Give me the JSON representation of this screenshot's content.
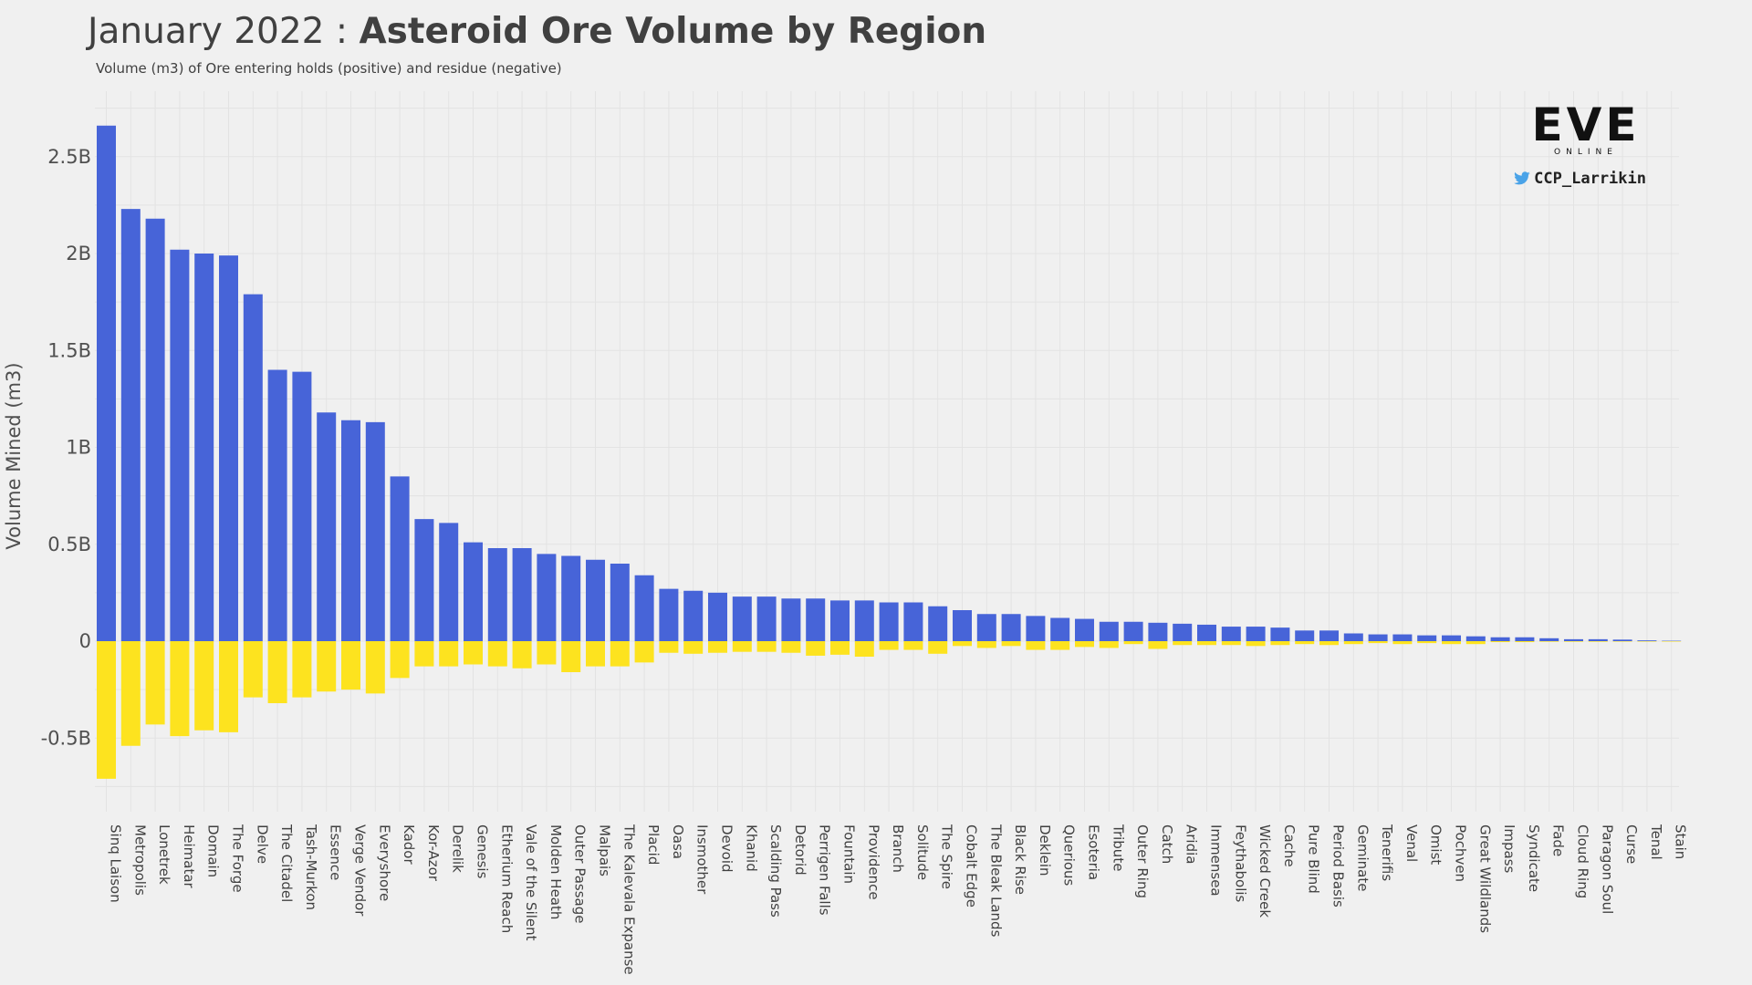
{
  "header": {
    "title_prefix": "January 2022 : ",
    "title_bold": "Asteroid Ore Volume by Region",
    "subtitle": "Volume (m3) of Ore entering holds (positive) and residue (negative)"
  },
  "branding": {
    "logo_text": "EVE",
    "logo_subtext": "ONLINE",
    "handle": "CCP_Larrikin",
    "handle_icon": "twitter-bird-icon"
  },
  "colors": {
    "background": "#f0f0f0",
    "positive": "#4764d8",
    "negative": "#fde31f",
    "grid": "#e3e3e3"
  },
  "chart_data": {
    "type": "bar",
    "title": "January 2022 : Asteroid Ore Volume by Region",
    "subtitle": "Volume (m3) of Ore entering holds (positive) and residue (negative)",
    "ylabel": "Volume Mined (m3)",
    "xlabel": "",
    "ylim": [
      -0.8,
      2.8
    ],
    "y_ticks": [
      -0.5,
      0,
      0.5,
      1,
      1.5,
      2,
      2.5
    ],
    "y_tick_labels": [
      "-0.5B",
      "0",
      "0.5B",
      "1B",
      "1.5B",
      "2B",
      "2.5B"
    ],
    "grid": true,
    "stacked": true,
    "categories": [
      "Sinq Laison",
      "Metropolis",
      "Lonetrek",
      "Heimatar",
      "Domain",
      "The Forge",
      "Delve",
      "The Citadel",
      "Tash-Murkon",
      "Essence",
      "Verge Vendor",
      "Everyshore",
      "Kador",
      "Kor-Azor",
      "Derelik",
      "Genesis",
      "Etherium Reach",
      "Vale of the Silent",
      "Molden Heath",
      "Outer Passage",
      "Malpais",
      "The Kalevala Expanse",
      "Placid",
      "Oasa",
      "Insmother",
      "Devoid",
      "Khanid",
      "Scalding Pass",
      "Detorid",
      "Perrigen Falls",
      "Fountain",
      "Providence",
      "Branch",
      "Solitude",
      "The Spire",
      "Cobalt Edge",
      "The Bleak Lands",
      "Black Rise",
      "Deklein",
      "Querious",
      "Esoteria",
      "Tribute",
      "Outer Ring",
      "Catch",
      "Aridia",
      "Immensea",
      "Feythabolis",
      "Wicked Creek",
      "Cache",
      "Pure Blind",
      "Period Basis",
      "Geminate",
      "Tenerifis",
      "Venal",
      "Omist",
      "Pochven",
      "Great Wildlands",
      "Impass",
      "Syndicate",
      "Fade",
      "Cloud Ring",
      "Paragon Soul",
      "Curse",
      "Tenal",
      "Stain"
    ],
    "series": [
      {
        "name": "positive",
        "values": [
          2.66,
          2.23,
          2.18,
          2.02,
          2.0,
          1.99,
          1.79,
          1.4,
          1.39,
          1.18,
          1.14,
          1.13,
          0.85,
          0.63,
          0.61,
          0.51,
          0.48,
          0.48,
          0.45,
          0.44,
          0.42,
          0.4,
          0.34,
          0.27,
          0.26,
          0.25,
          0.23,
          0.23,
          0.22,
          0.22,
          0.21,
          0.21,
          0.2,
          0.2,
          0.18,
          0.16,
          0.14,
          0.14,
          0.13,
          0.12,
          0.115,
          0.1,
          0.1,
          0.095,
          0.09,
          0.085,
          0.075,
          0.075,
          0.07,
          0.055,
          0.055,
          0.04,
          0.035,
          0.035,
          0.03,
          0.03,
          0.025,
          0.02,
          0.02,
          0.015,
          0.01,
          0.01,
          0.008,
          0.004,
          0.002
        ]
      },
      {
        "name": "negative",
        "values": [
          -0.71,
          -0.54,
          -0.43,
          -0.49,
          -0.46,
          -0.47,
          -0.29,
          -0.32,
          -0.29,
          -0.26,
          -0.25,
          -0.27,
          -0.19,
          -0.13,
          -0.13,
          -0.12,
          -0.13,
          -0.14,
          -0.12,
          -0.16,
          -0.13,
          -0.13,
          -0.11,
          -0.06,
          -0.065,
          -0.06,
          -0.055,
          -0.055,
          -0.06,
          -0.075,
          -0.07,
          -0.08,
          -0.045,
          -0.045,
          -0.065,
          -0.025,
          -0.035,
          -0.025,
          -0.045,
          -0.045,
          -0.03,
          -0.035,
          -0.015,
          -0.04,
          -0.02,
          -0.02,
          -0.02,
          -0.025,
          -0.02,
          -0.015,
          -0.02,
          -0.015,
          -0.01,
          -0.015,
          -0.01,
          -0.015,
          -0.015,
          -0.005,
          -0.005,
          -0.003,
          -0.003,
          -0.003,
          -0.002,
          -0.001,
          -0.001
        ]
      }
    ]
  }
}
